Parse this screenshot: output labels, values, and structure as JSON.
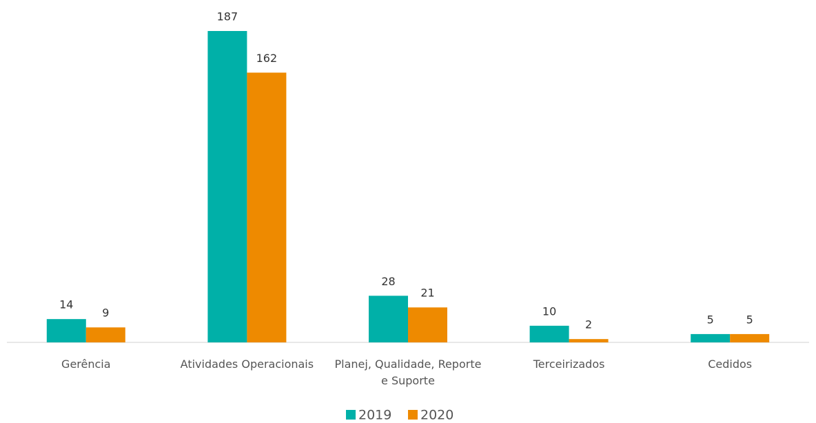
{
  "chart_data": {
    "type": "bar",
    "categories": [
      "Gerência",
      "Atividades Operacionais",
      "Planej, Qualidade, Reporte e Suporte",
      "Terceirizados",
      "Cedidos"
    ],
    "series": [
      {
        "name": "2019",
        "color": "#00b0a8",
        "values": [
          14,
          187,
          28,
          10,
          5
        ]
      },
      {
        "name": "2020",
        "color": "#ee8a00",
        "values": [
          9,
          162,
          21,
          2,
          5
        ]
      }
    ],
    "legend": "bottom"
  }
}
